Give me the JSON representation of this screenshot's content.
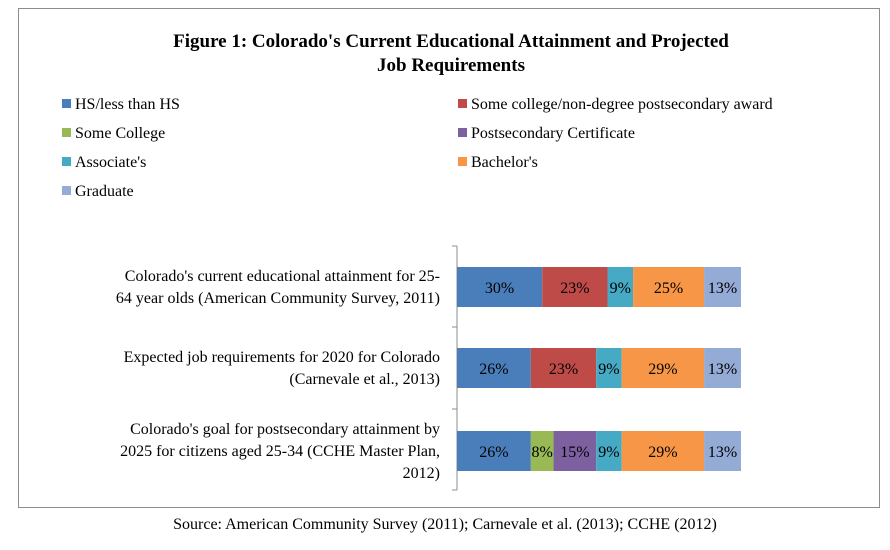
{
  "chart_data": {
    "type": "bar",
    "orientation": "horizontal",
    "stacked": true,
    "title": "Figure 1: Colorado's Current Educational Attainment and Projected Job Requirements",
    "title_lines": [
      "Figure 1: Colorado's Current Educational Attainment and Projected",
      "Job Requirements"
    ],
    "legend_position": "top",
    "grid": false,
    "categories": [
      "Colorado's current educational attainment for 25-64 year olds (American Community Survey, 2011)",
      "Expected job requirements for 2020 for Colorado (Carnevale et al., 2013)",
      "Colorado's goal for postsecondary attainment by 2025 for citizens aged 25-34 (CCHE Master Plan, 2012)"
    ],
    "category_lines": [
      [
        "Colorado's current educational attainment for 25-",
        "64 year olds (American Community Survey, 2011)"
      ],
      [
        "Expected job requirements for 2020 for Colorado",
        "(Carnevale et al., 2013)"
      ],
      [
        "Colorado's goal for postsecondary attainment by",
        "2025 for citizens aged 25-34 (CCHE Master Plan,",
        "2012)"
      ]
    ],
    "series": [
      {
        "name": "HS/less than HS",
        "color": "#4a7ebb",
        "values": [
          30,
          26,
          26
        ]
      },
      {
        "name": "Some college/non-degree postsecondary award",
        "color": "#be4b48",
        "values": [
          23,
          23,
          0
        ]
      },
      {
        "name": "Some College",
        "color": "#98b954",
        "values": [
          0,
          0,
          8
        ]
      },
      {
        "name": "Postsecondary Certificate",
        "color": "#7d60a0",
        "values": [
          0,
          0,
          15
        ]
      },
      {
        "name": "Associate's",
        "color": "#46aac5",
        "values": [
          9,
          9,
          9
        ]
      },
      {
        "name": "Bachelor's",
        "color": "#f79646",
        "values": [
          25,
          29,
          29
        ]
      },
      {
        "name": "Graduate",
        "color": "#94abd5",
        "values": [
          13,
          13,
          13
        ]
      }
    ],
    "value_suffix": "%"
  },
  "source_text": "Source: American Community Survey (2011); Carnevale et al. (2013); CCHE (2012)"
}
